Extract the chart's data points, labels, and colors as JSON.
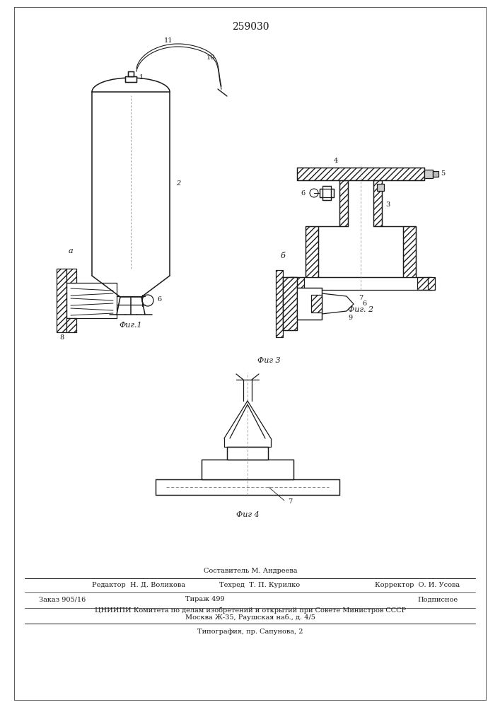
{
  "title": "259030",
  "bg_color": "#ffffff",
  "line_color": "#1a1a1a",
  "fig1_caption": "Фиг.1",
  "fig2_caption": "Фиг. 2",
  "fig3_caption": "Фиг 3",
  "fig4_caption": "Фиг 4",
  "label_a": "а",
  "label_b": "б",
  "footer_line1": "Составитель М. Андреева",
  "footer_ed": "Редактор  Н. Д. Воликова",
  "footer_tech": "Техред  Т. П. Курилко",
  "footer_corr": "Корректор  О. И. Усова",
  "footer_order": "Заказ 905/16",
  "footer_tirazh": "Тираж 499",
  "footer_podp": "Подписное",
  "footer_cniip": "ЦНИИПИ Комитета по делам изобретений и открытий при Совете Министров СССР",
  "footer_addr": "Москва Ж-35, Раушская наб., д. 4/5",
  "footer_typo": "Типография, пр. Сапунова, 2"
}
